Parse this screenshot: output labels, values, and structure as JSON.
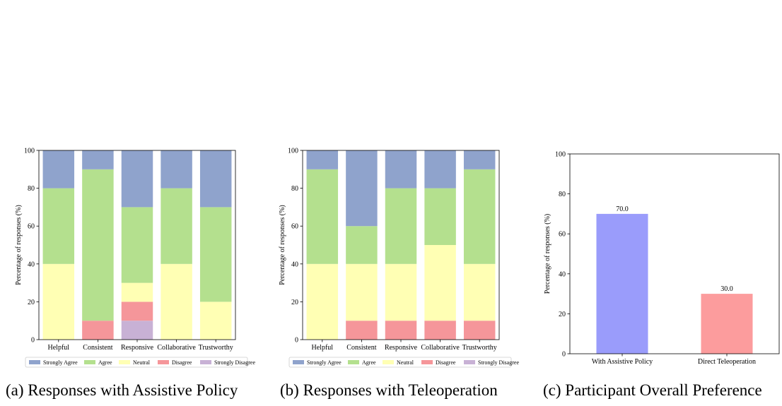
{
  "captions": [
    "(a) Responses with Assistive Policy",
    "(b) Responses with Teleoperation",
    "(c) Participant Overall Preference"
  ],
  "colors": {
    "Strongly Agree": "#8fa3cc",
    "Agree": "#b4e08e",
    "Neutral": "#ffffb4",
    "Disagree": "#f5969a",
    "Strongly Disagree": "#c8b1d5",
    "with_assistive": "#9a9cfb",
    "direct_tele": "#fc9c9d"
  },
  "chart_data": [
    {
      "type": "bar",
      "stacked": true,
      "title": "",
      "xlabel": "",
      "ylabel": "Percentage of responses (%)",
      "ylim": [
        0,
        100
      ],
      "yticks": [
        0,
        20,
        40,
        60,
        80,
        100
      ],
      "categories": [
        "Helpful",
        "Consistent",
        "Responsive",
        "Collaborative",
        "Trustworthy"
      ],
      "legend_position": "bottom",
      "series": [
        {
          "name": "Strongly Disagree",
          "values": [
            0,
            0,
            10,
            0,
            0
          ]
        },
        {
          "name": "Disagree",
          "values": [
            0,
            10,
            10,
            0,
            0
          ]
        },
        {
          "name": "Neutral",
          "values": [
            40,
            0,
            10,
            40,
            20
          ]
        },
        {
          "name": "Agree",
          "values": [
            40,
            80,
            40,
            40,
            50
          ]
        },
        {
          "name": "Strongly Agree",
          "values": [
            20,
            10,
            30,
            20,
            30
          ]
        }
      ],
      "legend": [
        "Strongly Agree",
        "Agree",
        "Neutral",
        "Disagree",
        "Strongly Disagree"
      ]
    },
    {
      "type": "bar",
      "stacked": true,
      "title": "",
      "xlabel": "",
      "ylabel": "Percentage of responses (%)",
      "ylim": [
        0,
        100
      ],
      "yticks": [
        0,
        20,
        40,
        60,
        80,
        100
      ],
      "categories": [
        "Helpful",
        "Consistent",
        "Responsive",
        "Collaborative",
        "Trustworthy"
      ],
      "legend_position": "bottom",
      "series": [
        {
          "name": "Strongly Disagree",
          "values": [
            0,
            0,
            0,
            0,
            0
          ]
        },
        {
          "name": "Disagree",
          "values": [
            0,
            10,
            10,
            10,
            10
          ]
        },
        {
          "name": "Neutral",
          "values": [
            40,
            30,
            30,
            40,
            30
          ]
        },
        {
          "name": "Agree",
          "values": [
            50,
            20,
            40,
            30,
            50
          ]
        },
        {
          "name": "Strongly Agree",
          "values": [
            10,
            40,
            20,
            20,
            10
          ]
        }
      ],
      "legend": [
        "Strongly Agree",
        "Agree",
        "Neutral",
        "Disagree",
        "Strongly Disagree"
      ]
    },
    {
      "type": "bar",
      "title": "",
      "xlabel": "",
      "ylabel": "Percentage of responses (%)",
      "ylim": [
        0,
        100
      ],
      "yticks": [
        0,
        20,
        40,
        60,
        80,
        100
      ],
      "categories": [
        "With Assistive Policy",
        "Direct Teleoperation"
      ],
      "values": [
        70.0,
        30.0
      ],
      "data_labels": [
        "70.0",
        "30.0"
      ]
    }
  ]
}
